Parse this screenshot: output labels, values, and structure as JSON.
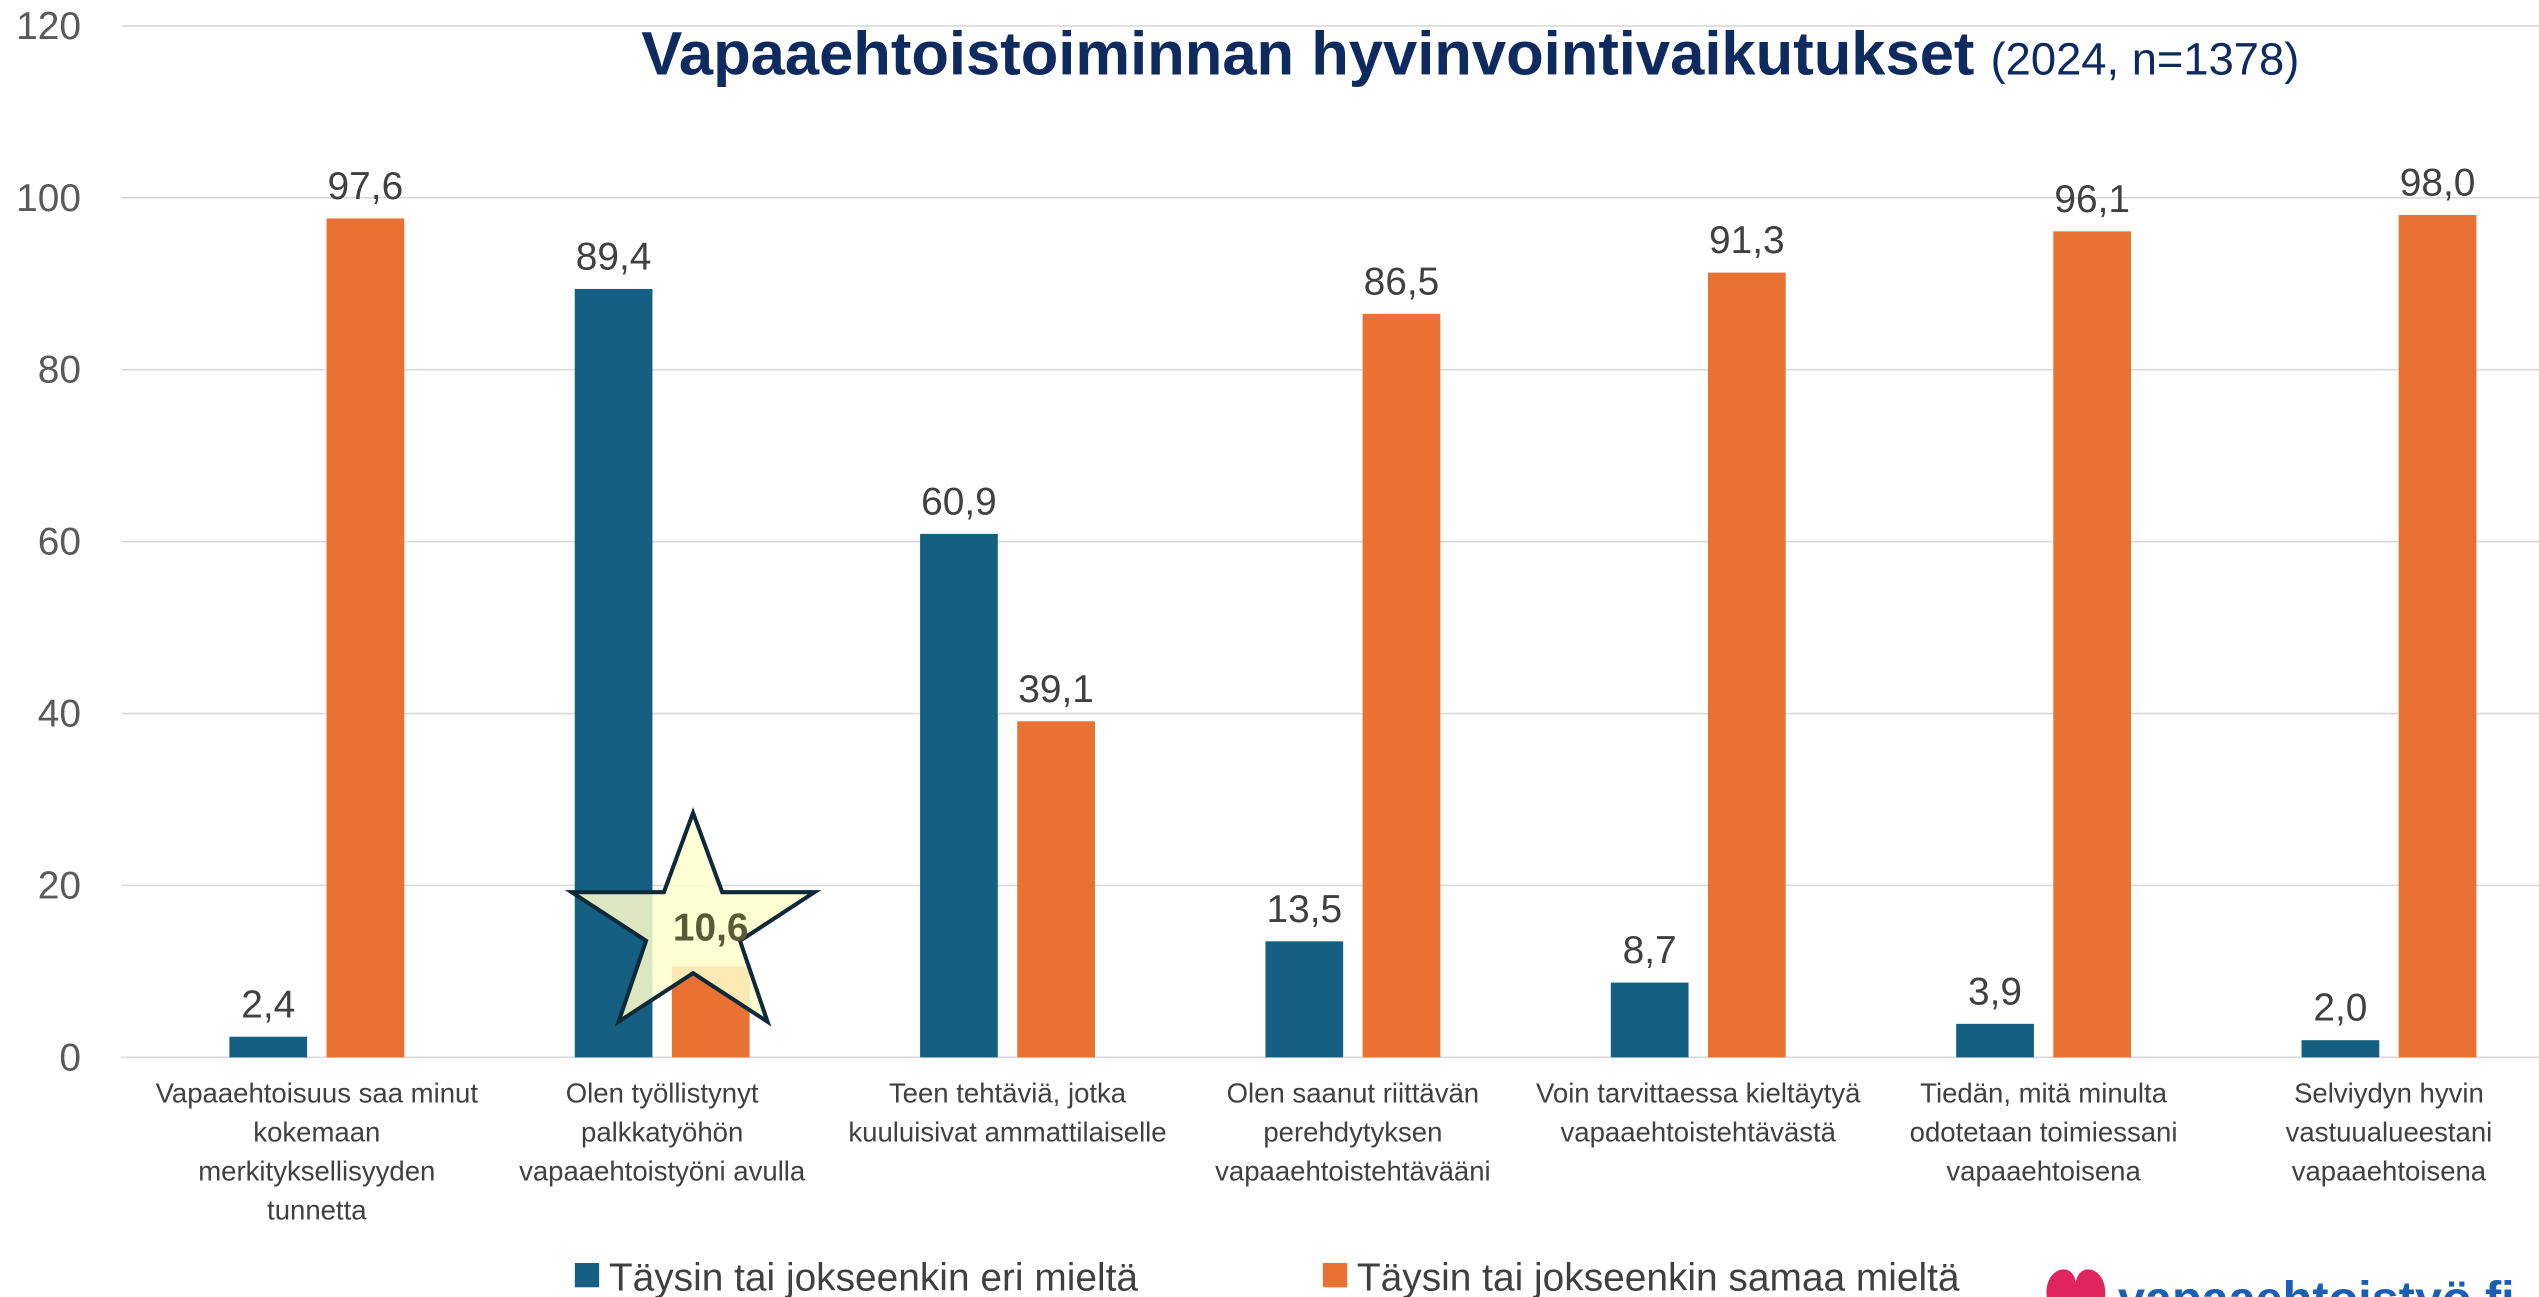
{
  "chart_data": {
    "type": "bar",
    "title": "Vapaaehtoistoiminnan hyvinvointivaikutukset",
    "subtitle": "(2024, n=1378)",
    "categories": [
      "Vapaaehtoisuus saa minut kokemaan merkityksellisyyden tunnetta",
      "Olen työllistynyt palkkatyöhön vapaaehtoistyöni avulla",
      "Teen tehtäviä, jotka kuuluisivat ammattilaiselle",
      "Olen saanut riittävän perehdytyksen vapaaehtoistehtävääni",
      "Voin tarvittaessa kieltäytyä vapaaehtoistehtävästä",
      "Tiedän, mitä minulta odotetaan toimiessani vapaaehtoisena",
      "Selviydyn hyvin vastuualueestani vapaaehtoisena"
    ],
    "series": [
      {
        "name": "Täysin tai jokseenkin eri mieltä",
        "color": "#156082",
        "values": [
          2.4,
          89.4,
          60.9,
          13.5,
          8.7,
          3.9,
          2.0
        ],
        "value_labels": [
          "2,4",
          "89,4",
          "60,9",
          "13,5",
          "8,7",
          "3,9",
          "2,0"
        ]
      },
      {
        "name": "Täysin tai jokseenkin samaa mieltä",
        "color": "#e97132",
        "values": [
          97.6,
          10.6,
          39.1,
          86.5,
          91.3,
          96.1,
          98.0
        ],
        "value_labels": [
          "97,6",
          "10,6",
          "39,1",
          "86,5",
          "91,3",
          "96,1",
          "98,0"
        ]
      }
    ],
    "ylim": [
      0,
      120
    ],
    "yticks": [
      0,
      20,
      40,
      60,
      80,
      100,
      120
    ],
    "grid": true,
    "legend": "bottom",
    "logo": "vapaaehtoistyö.fi"
  }
}
